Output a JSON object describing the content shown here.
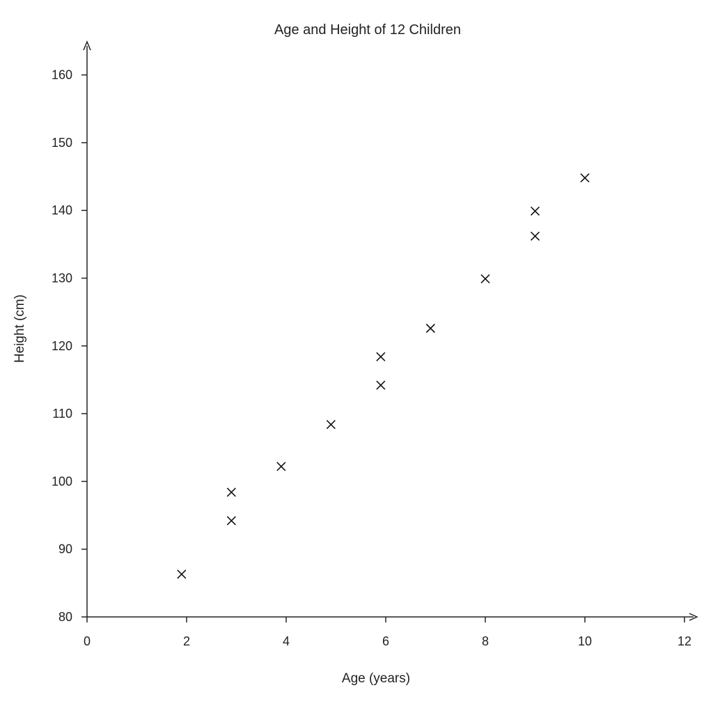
{
  "chart_data": {
    "type": "scatter",
    "title": "Age and Height of 12 Children",
    "xlabel": "Age (years)",
    "ylabel": "Height (cm)",
    "xlim": [
      0,
      12
    ],
    "ylim": [
      80,
      165
    ],
    "xticks": [
      0,
      2,
      4,
      6,
      8,
      10,
      12
    ],
    "xtick_labels": [
      "0",
      "2",
      "4",
      "6",
      "8",
      "10",
      "12"
    ],
    "yticks": [
      80,
      90,
      100,
      110,
      120,
      130,
      140,
      150,
      160
    ],
    "ytick_labels": [
      "80",
      "90",
      "100",
      "110",
      "120",
      "130",
      "140",
      "150",
      "160"
    ],
    "grid": false,
    "marker": "x",
    "marker_color": "#111111",
    "points": [
      {
        "x": 1.9,
        "y": 86.3
      },
      {
        "x": 2.9,
        "y": 94.2
      },
      {
        "x": 2.9,
        "y": 98.4
      },
      {
        "x": 3.9,
        "y": 102.2
      },
      {
        "x": 4.9,
        "y": 108.4
      },
      {
        "x": 5.9,
        "y": 114.2
      },
      {
        "x": 5.9,
        "y": 118.4
      },
      {
        "x": 6.9,
        "y": 122.6
      },
      {
        "x": 8.0,
        "y": 129.9
      },
      {
        "x": 9.0,
        "y": 136.2
      },
      {
        "x": 9.0,
        "y": 139.9
      },
      {
        "x": 10.0,
        "y": 144.8
      }
    ]
  }
}
